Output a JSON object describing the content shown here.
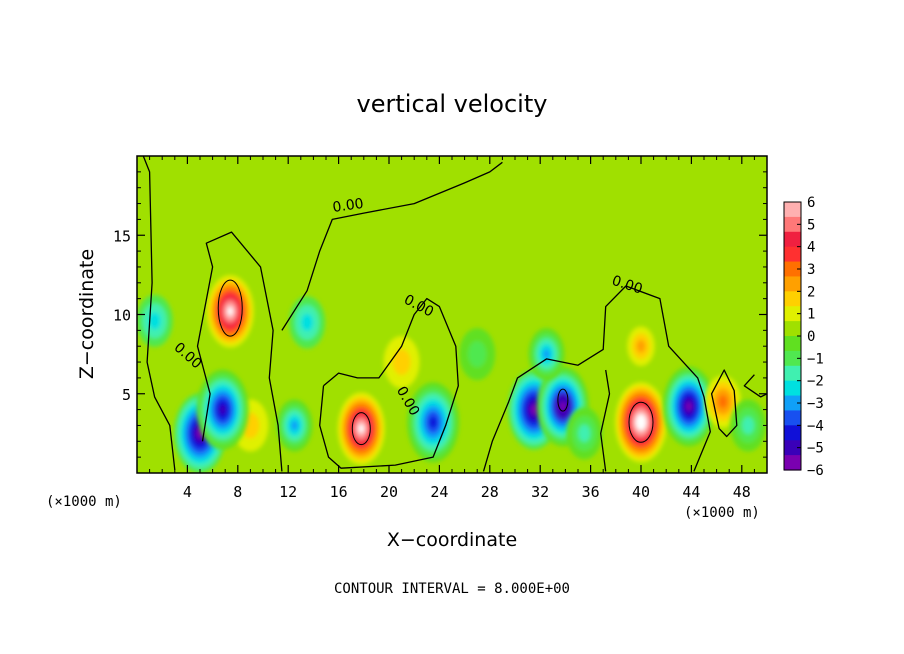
{
  "chart_data": {
    "type": "heatmap",
    "title": "vertical velocity",
    "xlabel": "X−coordinate",
    "ylabel": "Z−coordinate",
    "x_unit_left": "(×1000 m)",
    "x_unit_right": "(×1000 m)",
    "footer": "CONTOUR INTERVAL = 8.000E+00",
    "xlim": [
      0,
      50
    ],
    "ylim": [
      0,
      20
    ],
    "x_ticks": [
      4,
      8,
      12,
      16,
      20,
      24,
      28,
      32,
      36,
      40,
      44,
      48
    ],
    "y_ticks": [
      5,
      10,
      15
    ],
    "colorbar": {
      "range": [
        -6,
        6
      ],
      "tick_labels": [
        "6",
        "5",
        "4",
        "3",
        "2",
        "1",
        "0",
        "−1",
        "−2",
        "−3",
        "−4",
        "−5",
        "−6"
      ],
      "tick_values": [
        6,
        5,
        4,
        3,
        2,
        1,
        0,
        -1,
        -2,
        -3,
        -4,
        -5,
        -6
      ],
      "colors": [
        "#7a00b0",
        "#3a00b8",
        "#1010d8",
        "#1850f0",
        "#10a0f8",
        "#00e0e0",
        "#40f0b0",
        "#50e850",
        "#60e020",
        "#a0e000",
        "#e0f000",
        "#ffd000",
        "#ffa000",
        "#ff7000",
        "#ff3030",
        "#f02040",
        "#ff7878",
        "#ffb0b0"
      ]
    },
    "contour_labels": [
      "0.00",
      "0.00",
      "0.00",
      "0.00",
      "0.00"
    ],
    "features": [
      {
        "x": 7.4,
        "z": 10.2,
        "value": 6.5
      },
      {
        "x": 9.0,
        "z": 3.0,
        "value": 1.5
      },
      {
        "x": 5.0,
        "z": 2.5,
        "value": -5.5
      },
      {
        "x": 6.8,
        "z": 4.0,
        "value": -5.0
      },
      {
        "x": 1.4,
        "z": 9.6,
        "value": -2.2
      },
      {
        "x": 13.5,
        "z": 9.5,
        "value": -2.3
      },
      {
        "x": 12.5,
        "z": 3.0,
        "value": -3.0
      },
      {
        "x": 17.8,
        "z": 2.8,
        "value": 6.5
      },
      {
        "x": 21.0,
        "z": 7.0,
        "value": 1.5
      },
      {
        "x": 23.5,
        "z": 3.2,
        "value": -4.5
      },
      {
        "x": 27.0,
        "z": 7.5,
        "value": -1.3
      },
      {
        "x": 31.5,
        "z": 4.0,
        "value": -5.5
      },
      {
        "x": 33.8,
        "z": 4.2,
        "value": -6.0
      },
      {
        "x": 32.5,
        "z": 7.5,
        "value": -3.0
      },
      {
        "x": 40.0,
        "z": 3.2,
        "value": 6.8
      },
      {
        "x": 40.0,
        "z": 8.0,
        "value": 2.5
      },
      {
        "x": 43.8,
        "z": 4.2,
        "value": -5.8
      },
      {
        "x": 46.5,
        "z": 4.5,
        "value": 2.8
      },
      {
        "x": 48.5,
        "z": 3.0,
        "value": -2.0
      },
      {
        "x": 35.5,
        "z": 2.5,
        "value": -2.0
      }
    ]
  }
}
